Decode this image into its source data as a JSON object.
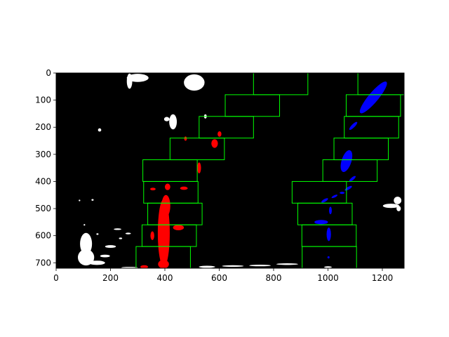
{
  "chart_data": {
    "type": "image",
    "title": "",
    "xlabel": "",
    "ylabel": "",
    "xlim": [
      0,
      1280
    ],
    "ylim": [
      720,
      0
    ],
    "x_ticks": [
      "0",
      "200",
      "400",
      "600",
      "800",
      "1000",
      "1200"
    ],
    "x_tick_values": [
      0,
      200,
      400,
      600,
      800,
      1000,
      1200
    ],
    "y_ticks": [
      "0",
      "100",
      "200",
      "300",
      "400",
      "500",
      "600",
      "700"
    ],
    "y_tick_values": [
      0,
      100,
      200,
      300,
      400,
      500,
      600,
      700
    ],
    "background_color": "#000000",
    "colors": {
      "window": "#00ff00",
      "left_lane": "#ff0000",
      "right_lane": "#0000ff",
      "noise": "#ffffff"
    },
    "windows": [
      {
        "lane": "left",
        "x": [
          294,
          494
        ],
        "y": [
          640,
          720
        ]
      },
      {
        "lane": "left",
        "x": [
          316,
          516
        ],
        "y": [
          560,
          640
        ]
      },
      {
        "lane": "left",
        "x": [
          337,
          537
        ],
        "y": [
          480,
          560
        ]
      },
      {
        "lane": "left",
        "x": [
          322,
          522
        ],
        "y": [
          400,
          480
        ]
      },
      {
        "lane": "left",
        "x": [
          319,
          519
        ],
        "y": [
          320,
          400
        ]
      },
      {
        "lane": "left",
        "x": [
          419,
          619
        ],
        "y": [
          240,
          320
        ]
      },
      {
        "lane": "left",
        "x": [
          526,
          726
        ],
        "y": [
          160,
          240
        ]
      },
      {
        "lane": "left",
        "x": [
          622,
          822
        ],
        "y": [
          80,
          160
        ]
      },
      {
        "lane": "left",
        "x": [
          726,
          926
        ],
        "y": [
          0,
          80
        ]
      },
      {
        "lane": "right",
        "x": [
          905,
          1105
        ],
        "y": [
          640,
          720
        ]
      },
      {
        "lane": "right",
        "x": [
          904,
          1104
        ],
        "y": [
          560,
          640
        ]
      },
      {
        "lane": "right",
        "x": [
          889,
          1089
        ],
        "y": [
          480,
          560
        ]
      },
      {
        "lane": "right",
        "x": [
          868,
          1068
        ],
        "y": [
          400,
          480
        ]
      },
      {
        "lane": "right",
        "x": [
          981,
          1181
        ],
        "y": [
          320,
          400
        ]
      },
      {
        "lane": "right",
        "x": [
          1022,
          1222
        ],
        "y": [
          240,
          320
        ]
      },
      {
        "lane": "right",
        "x": [
          1060,
          1260
        ],
        "y": [
          160,
          240
        ]
      },
      {
        "lane": "right",
        "x": [
          1067,
          1267
        ],
        "y": [
          80,
          160
        ]
      },
      {
        "lane": "right",
        "x": [
          1110,
          1310
        ],
        "y": [
          0,
          80
        ]
      }
    ],
    "left_lane_blobs": [
      {
        "cx": 396,
        "cy": 590,
        "rx": 22,
        "ry": 125
      },
      {
        "cx": 404,
        "cy": 490,
        "rx": 16,
        "ry": 40
      },
      {
        "cx": 395,
        "cy": 705,
        "rx": 20,
        "ry": 16
      },
      {
        "cx": 450,
        "cy": 570,
        "rx": 20,
        "ry": 10
      },
      {
        "cx": 354,
        "cy": 600,
        "rx": 7,
        "ry": 16
      },
      {
        "cx": 410,
        "cy": 420,
        "rx": 10,
        "ry": 12
      },
      {
        "cx": 470,
        "cy": 425,
        "rx": 14,
        "ry": 6
      },
      {
        "cx": 526,
        "cy": 350,
        "rx": 7,
        "ry": 20
      },
      {
        "cx": 583,
        "cy": 260,
        "rx": 12,
        "ry": 16
      },
      {
        "cx": 601,
        "cy": 225,
        "rx": 7,
        "ry": 10
      },
      {
        "cx": 476,
        "cy": 242,
        "rx": 5,
        "ry": 8
      },
      {
        "cx": 324,
        "cy": 715,
        "rx": 14,
        "ry": 6
      },
      {
        "cx": 356,
        "cy": 428,
        "rx": 10,
        "ry": 5
      }
    ],
    "right_lane_blobs": [
      {
        "cx": 1167,
        "cy": 90,
        "rx": 18,
        "ry": 75,
        "rotate": 40
      },
      {
        "cx": 1093,
        "cy": 195,
        "rx": 6,
        "ry": 20,
        "rotate": 45
      },
      {
        "cx": 1068,
        "cy": 325,
        "rx": 18,
        "ry": 42,
        "rotate": 18
      },
      {
        "cx": 1090,
        "cy": 390,
        "rx": 5,
        "ry": 15,
        "rotate": 50
      },
      {
        "cx": 1075,
        "cy": 425,
        "rx": 5,
        "ry": 15,
        "rotate": 60
      },
      {
        "cx": 1052,
        "cy": 442,
        "rx": 9,
        "ry": 4,
        "rotate": 0
      },
      {
        "cx": 1024,
        "cy": 455,
        "rx": 12,
        "ry": 4,
        "rotate": -25
      },
      {
        "cx": 988,
        "cy": 470,
        "rx": 14,
        "ry": 5,
        "rotate": -30
      },
      {
        "cx": 1009,
        "cy": 507,
        "rx": 5,
        "ry": 14,
        "rotate": 0
      },
      {
        "cx": 1003,
        "cy": 595,
        "rx": 8,
        "ry": 25,
        "rotate": 0
      },
      {
        "cx": 975,
        "cy": 550,
        "rx": 25,
        "ry": 8,
        "rotate": 0
      },
      {
        "cx": 1002,
        "cy": 680,
        "rx": 4,
        "ry": 4,
        "rotate": 0
      }
    ],
    "noise_blobs": [
      {
        "cx": 300,
        "cy": 18,
        "rx": 40,
        "ry": 15
      },
      {
        "cx": 270,
        "cy": 30,
        "rx": 10,
        "ry": 28
      },
      {
        "cx": 508,
        "cy": 35,
        "rx": 38,
        "ry": 30
      },
      {
        "cx": 430,
        "cy": 180,
        "rx": 14,
        "ry": 28
      },
      {
        "cx": 407,
        "cy": 170,
        "rx": 10,
        "ry": 8
      },
      {
        "cx": 549,
        "cy": 160,
        "rx": 5,
        "ry": 8
      },
      {
        "cx": 160,
        "cy": 210,
        "rx": 6,
        "ry": 6
      },
      {
        "cx": 1232,
        "cy": 490,
        "rx": 30,
        "ry": 8
      },
      {
        "cx": 1256,
        "cy": 470,
        "rx": 14,
        "ry": 14
      },
      {
        "cx": 1260,
        "cy": 500,
        "rx": 8,
        "ry": 10
      },
      {
        "cx": 110,
        "cy": 630,
        "rx": 22,
        "ry": 40
      },
      {
        "cx": 110,
        "cy": 680,
        "rx": 30,
        "ry": 30
      },
      {
        "cx": 150,
        "cy": 700,
        "rx": 30,
        "ry": 8
      },
      {
        "cx": 200,
        "cy": 640,
        "rx": 20,
        "ry": 5
      },
      {
        "cx": 180,
        "cy": 675,
        "rx": 18,
        "ry": 5
      },
      {
        "cx": 270,
        "cy": 718,
        "rx": 30,
        "ry": 3
      },
      {
        "cx": 226,
        "cy": 576,
        "rx": 14,
        "ry": 3
      },
      {
        "cx": 265,
        "cy": 592,
        "rx": 10,
        "ry": 3
      },
      {
        "cx": 237,
        "cy": 610,
        "rx": 6,
        "ry": 3
      },
      {
        "cx": 152,
        "cy": 594,
        "rx": 4,
        "ry": 3
      },
      {
        "cx": 104,
        "cy": 560,
        "rx": 3,
        "ry": 3
      },
      {
        "cx": 134,
        "cy": 468,
        "rx": 4,
        "ry": 3
      },
      {
        "cx": 86,
        "cy": 470,
        "rx": 3,
        "ry": 3
      },
      {
        "cx": 555,
        "cy": 715,
        "rx": 30,
        "ry": 4
      },
      {
        "cx": 650,
        "cy": 712,
        "rx": 40,
        "ry": 3
      },
      {
        "cx": 750,
        "cy": 710,
        "rx": 40,
        "ry": 3
      },
      {
        "cx": 850,
        "cy": 705,
        "rx": 40,
        "ry": 3
      },
      {
        "cx": 1000,
        "cy": 716,
        "rx": 14,
        "ry": 3
      }
    ]
  }
}
